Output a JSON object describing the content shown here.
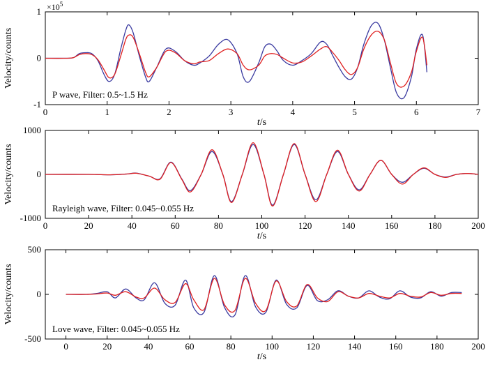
{
  "chart_data": [
    {
      "type": "line",
      "annotation": "P wave, Filter: 0.5~1.5 Hz",
      "xlabel_italic": "t",
      "xlabel_unit": "/s",
      "ylabel": "Velocity/counts",
      "y_multiplier": "×10",
      "y_multiplier_exp": "5",
      "xlim": [
        0,
        7
      ],
      "ylim": [
        -100000,
        100000
      ],
      "xticks": [
        0,
        1,
        2,
        3,
        4,
        5,
        6,
        7
      ],
      "xtick_labels": [
        "0",
        "1",
        "2",
        "3",
        "4",
        "5",
        "6",
        "7"
      ],
      "yticks": [
        -100000,
        0,
        100000
      ],
      "ytick_labels": [
        "-1",
        "0",
        "1"
      ],
      "series": [
        {
          "color": "#3a3aa0",
          "x": [
            0,
            0.3,
            0.45,
            0.55,
            0.65,
            0.75,
            0.85,
            0.95,
            1.03,
            1.12,
            1.22,
            1.3,
            1.35,
            1.42,
            1.52,
            1.62,
            1.68,
            1.8,
            1.95,
            2.1,
            2.25,
            2.4,
            2.5,
            2.65,
            2.8,
            2.95,
            3.1,
            3.2,
            3.3,
            3.45,
            3.55,
            3.65,
            3.75,
            3.85,
            4.0,
            4.15,
            4.3,
            4.45,
            4.55,
            4.65,
            4.75,
            4.85,
            4.95,
            5.05,
            5.15,
            5.27,
            5.38,
            5.48,
            5.58,
            5.68,
            5.8,
            5.92,
            6.0,
            6.1,
            6.17
          ],
          "y": [
            0,
            0,
            1000,
            10000,
            12000,
            10000,
            -5000,
            -35000,
            -50000,
            -35000,
            20000,
            60000,
            72000,
            55000,
            5000,
            -40000,
            -50000,
            -20000,
            20000,
            15000,
            -5000,
            -15000,
            -10000,
            5000,
            30000,
            40000,
            10000,
            -40000,
            -50000,
            -10000,
            25000,
            30000,
            15000,
            -5000,
            -15000,
            -5000,
            10000,
            35000,
            30000,
            5000,
            -20000,
            -40000,
            -45000,
            -20000,
            30000,
            70000,
            75000,
            40000,
            -20000,
            -75000,
            -85000,
            -40000,
            20000,
            50000,
            -30000
          ]
        },
        {
          "color": "#e02020",
          "x": [
            0,
            0.3,
            0.45,
            0.55,
            0.65,
            0.75,
            0.85,
            0.95,
            1.03,
            1.12,
            1.22,
            1.3,
            1.35,
            1.42,
            1.52,
            1.62,
            1.68,
            1.8,
            1.95,
            2.1,
            2.25,
            2.4,
            2.5,
            2.65,
            2.8,
            2.95,
            3.1,
            3.2,
            3.3,
            3.45,
            3.55,
            3.65,
            3.75,
            3.85,
            4.0,
            4.15,
            4.3,
            4.45,
            4.55,
            4.65,
            4.75,
            4.85,
            4.95,
            5.05,
            5.15,
            5.27,
            5.38,
            5.48,
            5.58,
            5.68,
            5.8,
            5.92,
            6.0,
            6.1,
            6.17
          ],
          "y": [
            0,
            0,
            1000,
            8000,
            10000,
            8000,
            -3000,
            -25000,
            -42000,
            -35000,
            5000,
            40000,
            50000,
            45000,
            10000,
            -30000,
            -40000,
            -20000,
            15000,
            12000,
            -5000,
            -12000,
            -8000,
            -5000,
            10000,
            20000,
            10000,
            -15000,
            -25000,
            -15000,
            5000,
            10000,
            8000,
            0,
            -10000,
            -8000,
            5000,
            20000,
            25000,
            12000,
            -5000,
            -25000,
            -35000,
            -20000,
            20000,
            50000,
            58000,
            40000,
            -10000,
            -55000,
            -60000,
            -30000,
            15000,
            45000,
            -15000
          ]
        }
      ]
    },
    {
      "type": "line",
      "annotation": "Rayleigh wave, Filter: 0.045~0.055 Hz",
      "xlabel_italic": "t",
      "xlabel_unit": "/s",
      "ylabel": "Velocity/counts",
      "xlim": [
        0,
        200
      ],
      "ylim": [
        -1000,
        1000
      ],
      "xticks": [
        0,
        20,
        40,
        60,
        80,
        100,
        120,
        140,
        160,
        180,
        200
      ],
      "xtick_labels": [
        "0",
        "20",
        "40",
        "60",
        "80",
        "100",
        "120",
        "140",
        "160",
        "180",
        "200"
      ],
      "yticks": [
        -1000,
        0,
        1000
      ],
      "ytick_labels": [
        "-1000",
        "0",
        "1000"
      ],
      "series": [
        {
          "color": "#3a3aa0",
          "x": [
            0,
            20,
            30,
            38,
            42,
            48,
            53,
            58,
            63,
            67,
            72,
            77,
            82,
            86,
            91,
            96,
            101,
            105,
            110,
            115,
            120,
            125,
            130,
            135,
            140,
            145,
            150,
            155,
            160,
            165,
            170,
            175,
            180,
            185,
            190,
            195,
            200
          ],
          "y": [
            0,
            0,
            -10,
            10,
            30,
            -40,
            -100,
            280,
            -100,
            -370,
            0,
            520,
            0,
            -620,
            0,
            680,
            0,
            -700,
            0,
            680,
            0,
            -580,
            0,
            520,
            0,
            -350,
            0,
            320,
            0,
            -180,
            0,
            140,
            0,
            -60,
            0,
            20,
            0
          ]
        },
        {
          "color": "#e02020",
          "x": [
            0,
            20,
            30,
            38,
            42,
            48,
            53,
            58,
            63,
            67,
            72,
            77,
            82,
            86,
            91,
            96,
            101,
            105,
            110,
            115,
            120,
            125,
            130,
            135,
            140,
            145,
            150,
            155,
            160,
            165,
            170,
            175,
            180,
            185,
            190,
            195,
            200
          ],
          "y": [
            0,
            0,
            -10,
            10,
            25,
            -40,
            -110,
            270,
            -110,
            -400,
            0,
            560,
            0,
            -640,
            0,
            720,
            0,
            -720,
            0,
            700,
            0,
            -620,
            0,
            550,
            0,
            -380,
            0,
            320,
            0,
            -220,
            0,
            150,
            0,
            -70,
            0,
            20,
            0
          ]
        }
      ]
    },
    {
      "type": "line",
      "annotation": "Love wave, Filter: 0.045~0.055 Hz",
      "xlabel_italic": "t",
      "xlabel_unit": "/s",
      "ylabel": "Velocity/counts",
      "xlim": [
        -10,
        200
      ],
      "ylim": [
        -500,
        500
      ],
      "xticks": [
        0,
        20,
        40,
        60,
        80,
        100,
        120,
        140,
        160,
        180,
        200
      ],
      "xtick_labels": [
        "0",
        "20",
        "40",
        "60",
        "80",
        "100",
        "120",
        "140",
        "160",
        "180",
        "200"
      ],
      "yticks": [
        -500,
        0,
        500
      ],
      "ytick_labels": [
        "-500",
        "0",
        "500"
      ],
      "series": [
        {
          "color": "#3a3aa0",
          "x": [
            0,
            10,
            15,
            20,
            24,
            29,
            34,
            38,
            43,
            48,
            53,
            58,
            62,
            67,
            72,
            77,
            82,
            87,
            92,
            97,
            102,
            107,
            112,
            117,
            122,
            127,
            132,
            137,
            142,
            147,
            152,
            157,
            162,
            167,
            172,
            177,
            182,
            187,
            192
          ],
          "y": [
            0,
            0,
            10,
            30,
            -40,
            60,
            -40,
            -60,
            130,
            -100,
            -120,
            160,
            -150,
            -200,
            210,
            -150,
            -230,
            210,
            -140,
            -200,
            160,
            -110,
            -150,
            100,
            -70,
            -60,
            40,
            -20,
            -40,
            40,
            -30,
            -50,
            40,
            -30,
            -40,
            30,
            -20,
            20,
            20
          ]
        },
        {
          "color": "#e02020",
          "x": [
            0,
            10,
            15,
            20,
            24,
            29,
            34,
            38,
            43,
            48,
            53,
            58,
            62,
            67,
            72,
            77,
            82,
            87,
            92,
            97,
            102,
            107,
            112,
            117,
            122,
            127,
            132,
            137,
            142,
            147,
            152,
            157,
            162,
            167,
            172,
            177,
            182,
            187,
            192
          ],
          "y": [
            0,
            0,
            5,
            15,
            -10,
            30,
            -30,
            -40,
            70,
            -60,
            -90,
            120,
            -60,
            -170,
            180,
            -120,
            -180,
            180,
            -100,
            -180,
            150,
            -80,
            -130,
            110,
            -40,
            -80,
            30,
            -20,
            -40,
            10,
            -20,
            -40,
            10,
            -20,
            -30,
            20,
            -10,
            10,
            10
          ]
        }
      ]
    }
  ]
}
